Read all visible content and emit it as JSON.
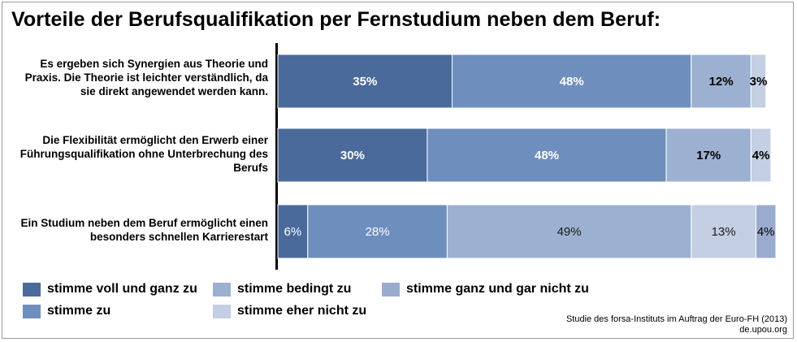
{
  "title": "Vorteile der Berufsqualifikation per Fernstudium neben dem Beruf:",
  "source_line1": "Studie des forsa-Instituts im Auftrag der Euro-FH (2013)",
  "source_line2": "de.upou.org",
  "colors": {
    "stimme voll und ganz zu": "#4a6a9c",
    "stimme zu": "#6e8fbd",
    "stimme bedingt zu": "#9cb1d1",
    "stimme ganz und gar nicht zu": "#9aaccd",
    "stimme eher nicht zu": "#c4cfe3"
  },
  "chart_data": {
    "type": "bar",
    "orientation": "horizontal",
    "stacked": true,
    "title": "Vorteile der Berufsqualifikation per Fernstudium neben dem Beruf:",
    "categories": [
      "Es ergeben sich Synergien aus Theorie und Praxis. Die Theorie ist leichter verständlich, da sie direkt angewendet werden kann.",
      "Die Flexibilität ermöglicht den Erwerb einer Führungsqualifikation ohne Unterbrechung des Berufs",
      "Ein Studium neben dem Beruf ermöglicht einen besonders schnellen Karrierestart"
    ],
    "rows": [
      {
        "segments": [
          {
            "series": "stimme voll und ganz zu",
            "value": 35,
            "label": "35%"
          },
          {
            "series": "stimme zu",
            "value": 48,
            "label": "48%"
          },
          {
            "series": "stimme bedingt zu",
            "value": 12,
            "label": "12%"
          },
          {
            "series": "stimme eher nicht zu",
            "value": 3,
            "label": "3%"
          }
        ]
      },
      {
        "segments": [
          {
            "series": "stimme voll und ganz zu",
            "value": 30,
            "label": "30%"
          },
          {
            "series": "stimme zu",
            "value": 48,
            "label": "48%"
          },
          {
            "series": "stimme bedingt zu",
            "value": 17,
            "label": "17%"
          },
          {
            "series": "stimme eher nicht zu",
            "value": 4,
            "label": "4%"
          }
        ]
      },
      {
        "segments": [
          {
            "series": "stimme voll und ganz zu",
            "value": 6,
            "label": "6%"
          },
          {
            "series": "stimme zu",
            "value": 28,
            "label": "28%"
          },
          {
            "series": "stimme bedingt zu",
            "value": 49,
            "label": "49%"
          },
          {
            "series": "stimme eher nicht zu",
            "value": 13,
            "label": "13%"
          },
          {
            "series": "stimme ganz und gar nicht zu",
            "value": 4,
            "label": "4%"
          }
        ]
      }
    ],
    "legend": [
      "stimme voll und ganz zu",
      "stimme zu",
      "stimme bedingt zu",
      "stimme eher nicht zu",
      "stimme ganz und gar nicht zu"
    ],
    "legend_position": "bottom",
    "grid": false
  }
}
